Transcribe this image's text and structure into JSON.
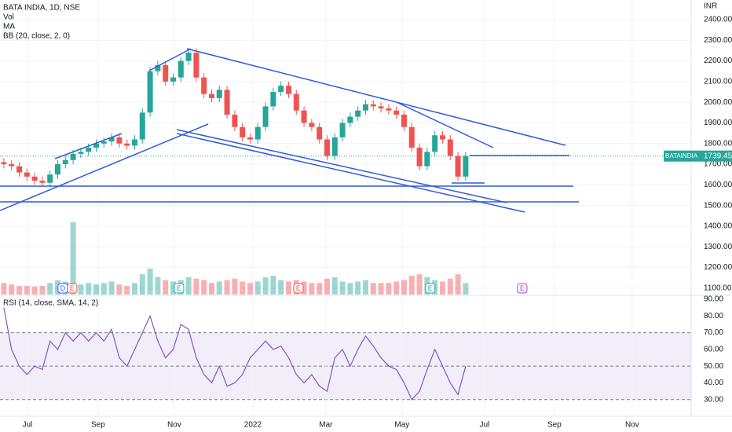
{
  "chart_data": {
    "type": "candlestick",
    "title": "BATA INDIA, 1D, NSE",
    "indicators": [
      "Vol",
      "MA",
      "BB (20, close, 2, 0)"
    ],
    "currency": "INR",
    "symbol": "BATAINDIA",
    "up_color": "#26a69a",
    "down_color": "#ef5350",
    "open": [
      1710,
      1700,
      1690,
      1660,
      1640,
      1620,
      1610,
      1650,
      1700,
      1720,
      1750,
      1760,
      1780,
      1800,
      1810,
      1830,
      1800,
      1790,
      1820,
      1950,
      2150,
      2180,
      2100,
      2120,
      2200,
      2240,
      2120,
      2040,
      2020,
      2060,
      1940,
      1880,
      1830,
      1820,
      1880,
      1980,
      2050,
      2080,
      2040,
      1960,
      1900,
      1880,
      1820,
      1740,
      1830,
      1900,
      1930,
      1960,
      1990,
      1980,
      1970,
      1960,
      1940,
      1880,
      1780,
      1690,
      1760,
      1840,
      1820,
      1740,
      1640
    ],
    "high": [
      1730,
      1720,
      1710,
      1680,
      1660,
      1640,
      1670,
      1720,
      1740,
      1770,
      1780,
      1800,
      1820,
      1830,
      1850,
      1850,
      1820,
      1840,
      1970,
      2170,
      2200,
      2200,
      2140,
      2220,
      2260,
      2260,
      2140,
      2060,
      2080,
      2080,
      1960,
      1900,
      1850,
      1900,
      2000,
      2070,
      2100,
      2100,
      2060,
      1980,
      1920,
      1900,
      1840,
      1850,
      1920,
      1950,
      1980,
      2010,
      2010,
      2000,
      1990,
      1980,
      1960,
      1900,
      1800,
      1780,
      1860,
      1860,
      1840,
      1760,
      1760
    ],
    "low": [
      1680,
      1670,
      1640,
      1620,
      1600,
      1590,
      1590,
      1630,
      1680,
      1700,
      1730,
      1740,
      1760,
      1780,
      1790,
      1780,
      1770,
      1770,
      1800,
      1930,
      2130,
      2080,
      2080,
      2100,
      2180,
      2100,
      2020,
      2000,
      2000,
      1920,
      1860,
      1810,
      1800,
      1800,
      1860,
      1960,
      2030,
      2020,
      1940,
      1880,
      1860,
      1800,
      1720,
      1720,
      1810,
      1880,
      1910,
      1940,
      1960,
      1950,
      1940,
      1920,
      1860,
      1760,
      1670,
      1670,
      1740,
      1800,
      1720,
      1620,
      1620
    ],
    "close": [
      1700,
      1690,
      1660,
      1640,
      1620,
      1610,
      1650,
      1700,
      1720,
      1750,
      1760,
      1780,
      1800,
      1810,
      1830,
      1800,
      1790,
      1820,
      1950,
      2150,
      2180,
      2100,
      2120,
      2200,
      2240,
      2120,
      2040,
      2020,
      2060,
      1940,
      1880,
      1830,
      1820,
      1880,
      1980,
      2050,
      2080,
      2040,
      1960,
      1900,
      1880,
      1820,
      1740,
      1830,
      1900,
      1930,
      1960,
      1990,
      1980,
      1970,
      1960,
      1940,
      1880,
      1780,
      1690,
      1760,
      1840,
      1820,
      1740,
      1640,
      1739.45
    ],
    "volume": [
      400,
      350,
      300,
      300,
      280,
      300,
      400,
      500,
      450,
      2500,
      350,
      400,
      350,
      400,
      450,
      350,
      300,
      400,
      700,
      900,
      600,
      500,
      450,
      500,
      600,
      550,
      500,
      400,
      450,
      500,
      550,
      450,
      400,
      450,
      600,
      650,
      500,
      450,
      500,
      450,
      400,
      400,
      550,
      600,
      450,
      400,
      450,
      500,
      400,
      400,
      400,
      450,
      500,
      650,
      700,
      600,
      500,
      450,
      550,
      700,
      400
    ],
    "xlim": [
      -0.5,
      89.3
    ],
    "xticks": [
      {
        "value": 3.06,
        "label": "Jul"
      },
      {
        "value": 12.24,
        "label": "Sep"
      },
      {
        "value": 22.14,
        "label": "Nov"
      },
      {
        "value": 32.35,
        "label": "2022"
      },
      {
        "value": 41.84,
        "label": "Mar"
      },
      {
        "value": 51.73,
        "label": "May"
      },
      {
        "value": 62.45,
        "label": "Jul"
      },
      {
        "value": 71.53,
        "label": "Sep"
      },
      {
        "value": 81.63,
        "label": "Nov"
      }
    ],
    "ylim": [
      1069,
      2495
    ],
    "yticks": [
      {
        "value": 2400,
        "label": "2400.00"
      },
      {
        "value": 2300,
        "label": "2300.00"
      },
      {
        "value": 2200,
        "label": "2200.00"
      },
      {
        "value": 2100,
        "label": "2100.00"
      },
      {
        "value": 2000,
        "label": "2000.00"
      },
      {
        "value": 1900,
        "label": "1900.00"
      },
      {
        "value": 1800,
        "label": "1800.00"
      },
      {
        "value": 1700,
        "label": "1700.00"
      },
      {
        "value": 1600,
        "label": "1600.00"
      },
      {
        "value": 1500,
        "label": "1500.00"
      },
      {
        "value": 1400,
        "label": "1400.00"
      },
      {
        "value": 1300,
        "label": "1300.00"
      },
      {
        "value": 1200,
        "label": "1200.00"
      },
      {
        "value": 1100,
        "label": "1100.00"
      }
    ],
    "events": [
      {
        "label": "D",
        "x": 7.65,
        "color": "#2962ff"
      },
      {
        "label": "E",
        "x": 8.88,
        "color": "#ef5350"
      },
      {
        "label": "E",
        "x": 22.76,
        "color": "#26a69a"
      },
      {
        "label": "E",
        "x": 38.27,
        "color": "#ef5350"
      },
      {
        "label": "E",
        "x": 55.4,
        "color": "#26a69a"
      },
      {
        "label": "E",
        "x": 67.35,
        "color": "#ab47bc"
      }
    ],
    "rsi": {
      "title": "RSI (14, close, SMA, 14, 2)",
      "color": "#7e57c2",
      "values": [
        85,
        60,
        50,
        45,
        50,
        48,
        65,
        60,
        70,
        65,
        70,
        65,
        70,
        65,
        72,
        55,
        50,
        60,
        70,
        80,
        65,
        55,
        60,
        75,
        72,
        55,
        45,
        40,
        50,
        38,
        40,
        45,
        55,
        60,
        65,
        60,
        62,
        55,
        45,
        40,
        45,
        38,
        35,
        55,
        60,
        50,
        60,
        68,
        62,
        55,
        50,
        48,
        40,
        30,
        35,
        48,
        60,
        50,
        40,
        33,
        50
      ],
      "ylim": [
        20,
        91.9
      ],
      "yticks": [
        {
          "value": 90,
          "label": "90.00"
        },
        {
          "value": 80,
          "label": "80.00"
        },
        {
          "value": 70,
          "label": "70.00"
        },
        {
          "value": 60,
          "label": "60.00"
        },
        {
          "value": 50,
          "label": "50.00"
        },
        {
          "value": 40,
          "label": "40.00"
        },
        {
          "value": 30,
          "label": "30.00"
        }
      ],
      "bands": [
        70,
        50,
        30
      ]
    }
  }
}
